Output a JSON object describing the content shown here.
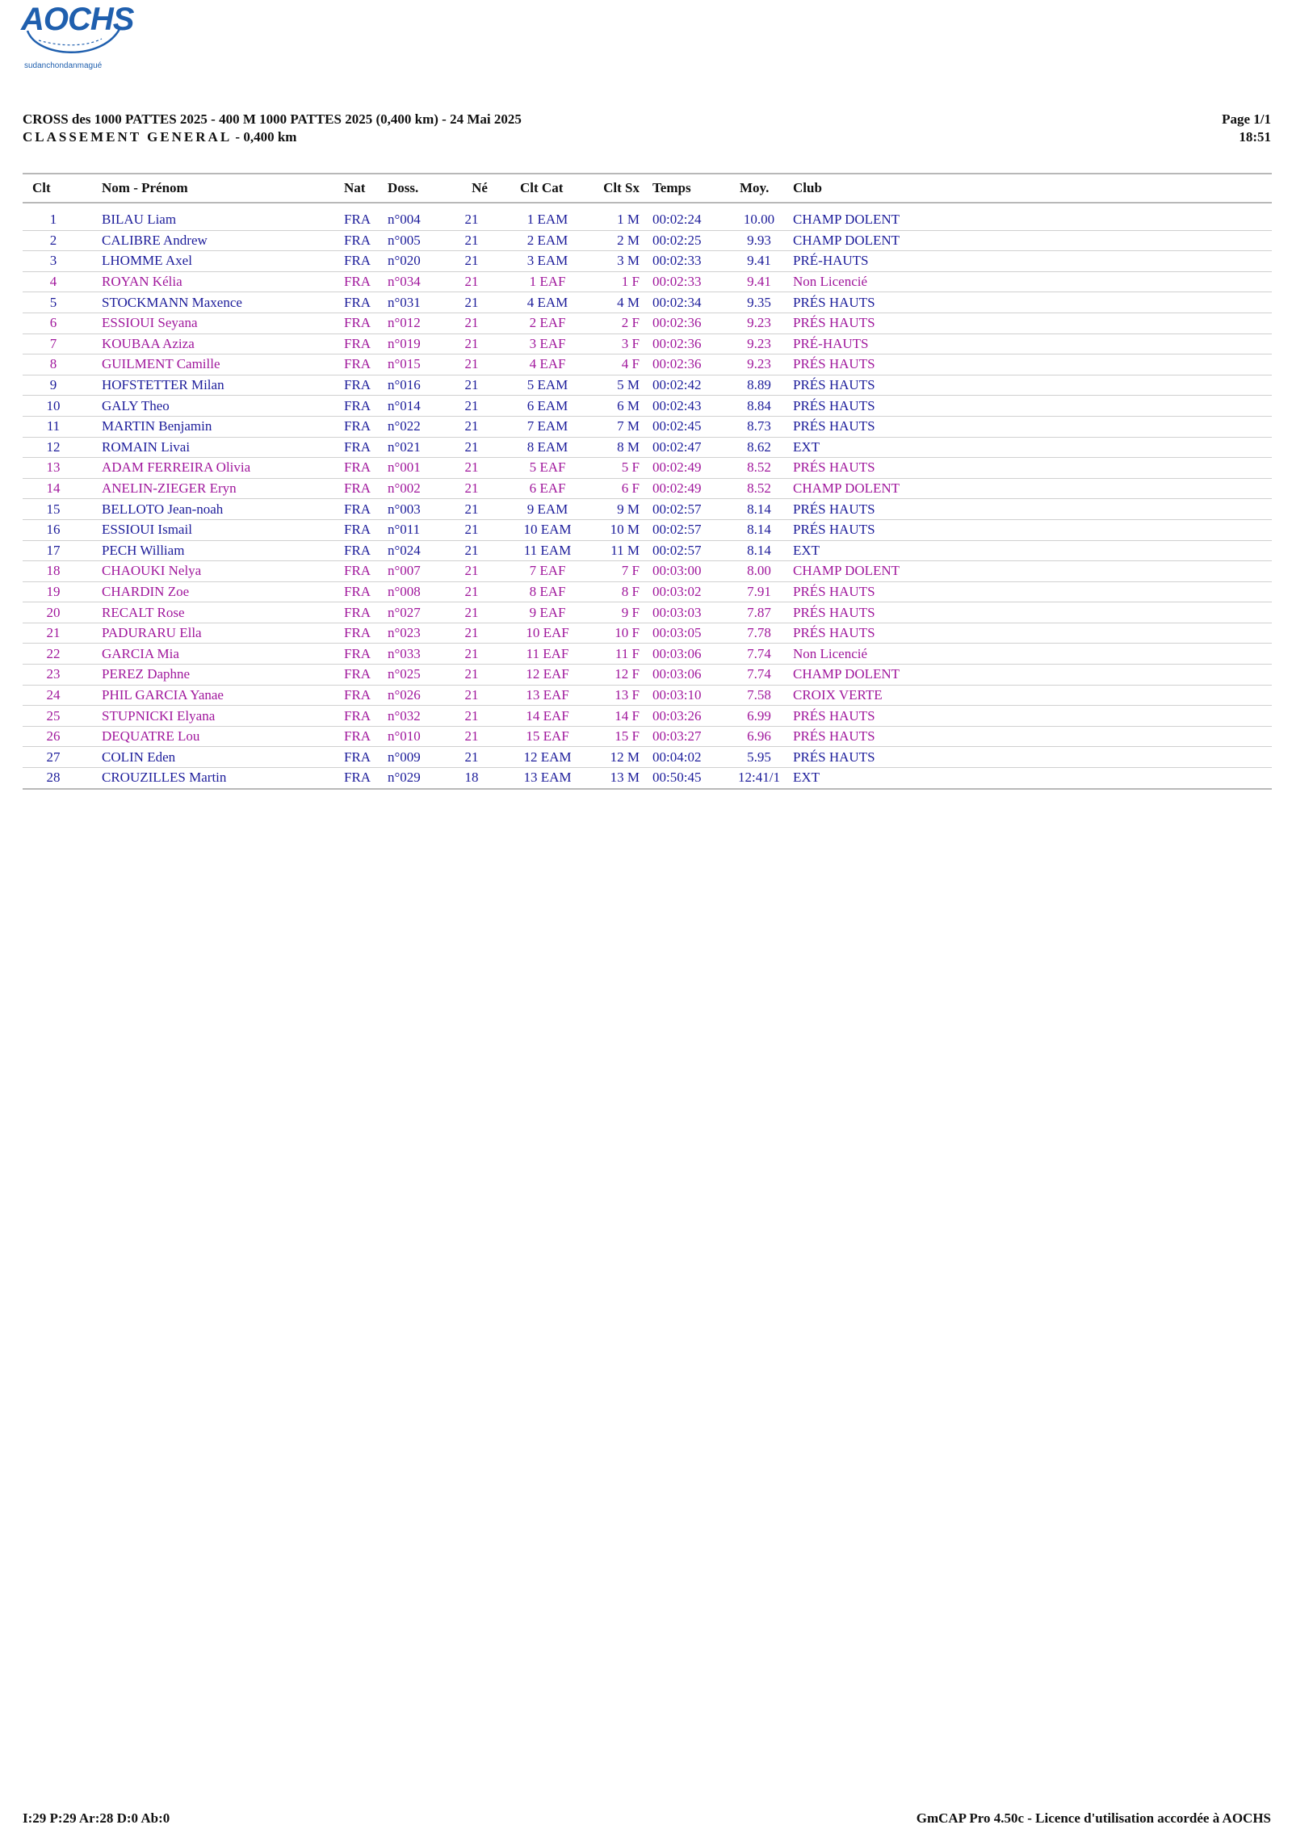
{
  "logo": {
    "text": "AOCHS",
    "tagline": "sudanchondanmagué"
  },
  "header": {
    "title": "CROSS des 1000 PATTES 2025 - 400 M 1000 PATTES 2025 (0,400 km) - 24 Mai 2025",
    "subtitle": "CLASSEMENT GENERAL",
    "subtitle_distance": " - 0,400 km",
    "page": "Page 1/1",
    "time": "18:51"
  },
  "table": {
    "columns": [
      "Clt",
      "Nom - Prénom",
      "Nat",
      "Doss.",
      "Né",
      "Clt Cat",
      "Clt Sx",
      "Temps",
      "Moy.",
      "Club"
    ],
    "rows": [
      {
        "clt": "1",
        "nom": "BILAU Liam",
        "nat": "FRA",
        "doss": "n°004",
        "ne": "21",
        "cat": "1 EAM",
        "sx": "1 M",
        "temps": "00:02:24",
        "moy": "10.00",
        "club": "CHAMP DOLENT",
        "sex": "m"
      },
      {
        "clt": "2",
        "nom": "CALIBRE Andrew",
        "nat": "FRA",
        "doss": "n°005",
        "ne": "21",
        "cat": "2 EAM",
        "sx": "2 M",
        "temps": "00:02:25",
        "moy": "9.93",
        "club": "CHAMP DOLENT",
        "sex": "m"
      },
      {
        "clt": "3",
        "nom": "LHOMME Axel",
        "nat": "FRA",
        "doss": "n°020",
        "ne": "21",
        "cat": "3 EAM",
        "sx": "3 M",
        "temps": "00:02:33",
        "moy": "9.41",
        "club": "PRÉ-HAUTS",
        "sex": "m"
      },
      {
        "clt": "4",
        "nom": "ROYAN Kélia",
        "nat": "FRA",
        "doss": "n°034",
        "ne": "21",
        "cat": "1 EAF",
        "sx": "1 F",
        "temps": "00:02:33",
        "moy": "9.41",
        "club": "Non Licencié",
        "sex": "f"
      },
      {
        "clt": "5",
        "nom": "STOCKMANN Maxence",
        "nat": "FRA",
        "doss": "n°031",
        "ne": "21",
        "cat": "4 EAM",
        "sx": "4 M",
        "temps": "00:02:34",
        "moy": "9.35",
        "club": "PRÉS HAUTS",
        "sex": "m"
      },
      {
        "clt": "6",
        "nom": "ESSIOUI Seyana",
        "nat": "FRA",
        "doss": "n°012",
        "ne": "21",
        "cat": "2 EAF",
        "sx": "2 F",
        "temps": "00:02:36",
        "moy": "9.23",
        "club": "PRÉS HAUTS",
        "sex": "f"
      },
      {
        "clt": "7",
        "nom": "KOUBAA Aziza",
        "nat": "FRA",
        "doss": "n°019",
        "ne": "21",
        "cat": "3 EAF",
        "sx": "3 F",
        "temps": "00:02:36",
        "moy": "9.23",
        "club": "PRÉ-HAUTS",
        "sex": "f"
      },
      {
        "clt": "8",
        "nom": "GUILMENT Camille",
        "nat": "FRA",
        "doss": "n°015",
        "ne": "21",
        "cat": "4 EAF",
        "sx": "4 F",
        "temps": "00:02:36",
        "moy": "9.23",
        "club": "PRÉS HAUTS",
        "sex": "f"
      },
      {
        "clt": "9",
        "nom": "HOFSTETTER Milan",
        "nat": "FRA",
        "doss": "n°016",
        "ne": "21",
        "cat": "5 EAM",
        "sx": "5 M",
        "temps": "00:02:42",
        "moy": "8.89",
        "club": "PRÉS HAUTS",
        "sex": "m"
      },
      {
        "clt": "10",
        "nom": "GALY Theo",
        "nat": "FRA",
        "doss": "n°014",
        "ne": "21",
        "cat": "6 EAM",
        "sx": "6 M",
        "temps": "00:02:43",
        "moy": "8.84",
        "club": "PRÉS HAUTS",
        "sex": "m"
      },
      {
        "clt": "11",
        "nom": "MARTIN Benjamin",
        "nat": "FRA",
        "doss": "n°022",
        "ne": "21",
        "cat": "7 EAM",
        "sx": "7 M",
        "temps": "00:02:45",
        "moy": "8.73",
        "club": "PRÉS HAUTS",
        "sex": "m"
      },
      {
        "clt": "12",
        "nom": "ROMAIN Livai",
        "nat": "FRA",
        "doss": "n°021",
        "ne": "21",
        "cat": "8 EAM",
        "sx": "8 M",
        "temps": "00:02:47",
        "moy": "8.62",
        "club": "EXT",
        "sex": "m"
      },
      {
        "clt": "13",
        "nom": "ADAM FERREIRA Olivia",
        "nat": "FRA",
        "doss": "n°001",
        "ne": "21",
        "cat": "5 EAF",
        "sx": "5 F",
        "temps": "00:02:49",
        "moy": "8.52",
        "club": "PRÉS HAUTS",
        "sex": "f"
      },
      {
        "clt": "14",
        "nom": "ANELIN-ZIEGER Eryn",
        "nat": "FRA",
        "doss": "n°002",
        "ne": "21",
        "cat": "6 EAF",
        "sx": "6 F",
        "temps": "00:02:49",
        "moy": "8.52",
        "club": "CHAMP DOLENT",
        "sex": "f"
      },
      {
        "clt": "15",
        "nom": "BELLOTO Jean-noah",
        "nat": "FRA",
        "doss": "n°003",
        "ne": "21",
        "cat": "9 EAM",
        "sx": "9 M",
        "temps": "00:02:57",
        "moy": "8.14",
        "club": "PRÉS HAUTS",
        "sex": "m"
      },
      {
        "clt": "16",
        "nom": "ESSIOUI Ismail",
        "nat": "FRA",
        "doss": "n°011",
        "ne": "21",
        "cat": "10 EAM",
        "sx": "10 M",
        "temps": "00:02:57",
        "moy": "8.14",
        "club": "PRÉS HAUTS",
        "sex": "m"
      },
      {
        "clt": "17",
        "nom": "PECH William",
        "nat": "FRA",
        "doss": "n°024",
        "ne": "21",
        "cat": "11 EAM",
        "sx": "11 M",
        "temps": "00:02:57",
        "moy": "8.14",
        "club": "EXT",
        "sex": "m"
      },
      {
        "clt": "18",
        "nom": "CHAOUKI Nelya",
        "nat": "FRA",
        "doss": "n°007",
        "ne": "21",
        "cat": "7 EAF",
        "sx": "7 F",
        "temps": "00:03:00",
        "moy": "8.00",
        "club": "CHAMP DOLENT",
        "sex": "f"
      },
      {
        "clt": "19",
        "nom": "CHARDIN Zoe",
        "nat": "FRA",
        "doss": "n°008",
        "ne": "21",
        "cat": "8 EAF",
        "sx": "8 F",
        "temps": "00:03:02",
        "moy": "7.91",
        "club": "PRÉS HAUTS",
        "sex": "f"
      },
      {
        "clt": "20",
        "nom": "RECALT Rose",
        "nat": "FRA",
        "doss": "n°027",
        "ne": "21",
        "cat": "9 EAF",
        "sx": "9 F",
        "temps": "00:03:03",
        "moy": "7.87",
        "club": "PRÉS HAUTS",
        "sex": "f"
      },
      {
        "clt": "21",
        "nom": "PADURARU Ella",
        "nat": "FRA",
        "doss": "n°023",
        "ne": "21",
        "cat": "10 EAF",
        "sx": "10 F",
        "temps": "00:03:05",
        "moy": "7.78",
        "club": "PRÉS HAUTS",
        "sex": "f"
      },
      {
        "clt": "22",
        "nom": "GARCIA Mia",
        "nat": "FRA",
        "doss": "n°033",
        "ne": "21",
        "cat": "11 EAF",
        "sx": "11 F",
        "temps": "00:03:06",
        "moy": "7.74",
        "club": "Non Licencié",
        "sex": "f"
      },
      {
        "clt": "23",
        "nom": "PEREZ Daphne",
        "nat": "FRA",
        "doss": "n°025",
        "ne": "21",
        "cat": "12 EAF",
        "sx": "12 F",
        "temps": "00:03:06",
        "moy": "7.74",
        "club": "CHAMP DOLENT",
        "sex": "f"
      },
      {
        "clt": "24",
        "nom": "PHIL GARCIA Yanae",
        "nat": "FRA",
        "doss": "n°026",
        "ne": "21",
        "cat": "13 EAF",
        "sx": "13 F",
        "temps": "00:03:10",
        "moy": "7.58",
        "club": "CROIX VERTE",
        "sex": "f"
      },
      {
        "clt": "25",
        "nom": "STUPNICKI Elyana",
        "nat": "FRA",
        "doss": "n°032",
        "ne": "21",
        "cat": "14 EAF",
        "sx": "14 F",
        "temps": "00:03:26",
        "moy": "6.99",
        "club": "PRÉS HAUTS",
        "sex": "f"
      },
      {
        "clt": "26",
        "nom": "DEQUATRE Lou",
        "nat": "FRA",
        "doss": "n°010",
        "ne": "21",
        "cat": "15 EAF",
        "sx": "15 F",
        "temps": "00:03:27",
        "moy": "6.96",
        "club": "PRÉS HAUTS",
        "sex": "f"
      },
      {
        "clt": "27",
        "nom": "COLIN Eden",
        "nat": "FRA",
        "doss": "n°009",
        "ne": "21",
        "cat": "12 EAM",
        "sx": "12 M",
        "temps": "00:04:02",
        "moy": "5.95",
        "club": "PRÉS HAUTS",
        "sex": "m"
      },
      {
        "clt": "28",
        "nom": "CROUZILLES Martin",
        "nat": "FRA",
        "doss": "n°029",
        "ne": "18",
        "cat": "13 EAM",
        "sx": "13 M",
        "temps": "00:50:45",
        "moy": "12:41/1",
        "club": "EXT",
        "sex": "m"
      }
    ]
  },
  "colors": {
    "male": "#1c1c9a",
    "female": "#a0179c",
    "logo": "#1f5fae"
  },
  "footer": {
    "stats": "I:29 P:29 Ar:28 D:0 Ab:0",
    "software": "GmCAP Pro 4.50c - Licence d'utilisation accordée à AOCHS"
  }
}
